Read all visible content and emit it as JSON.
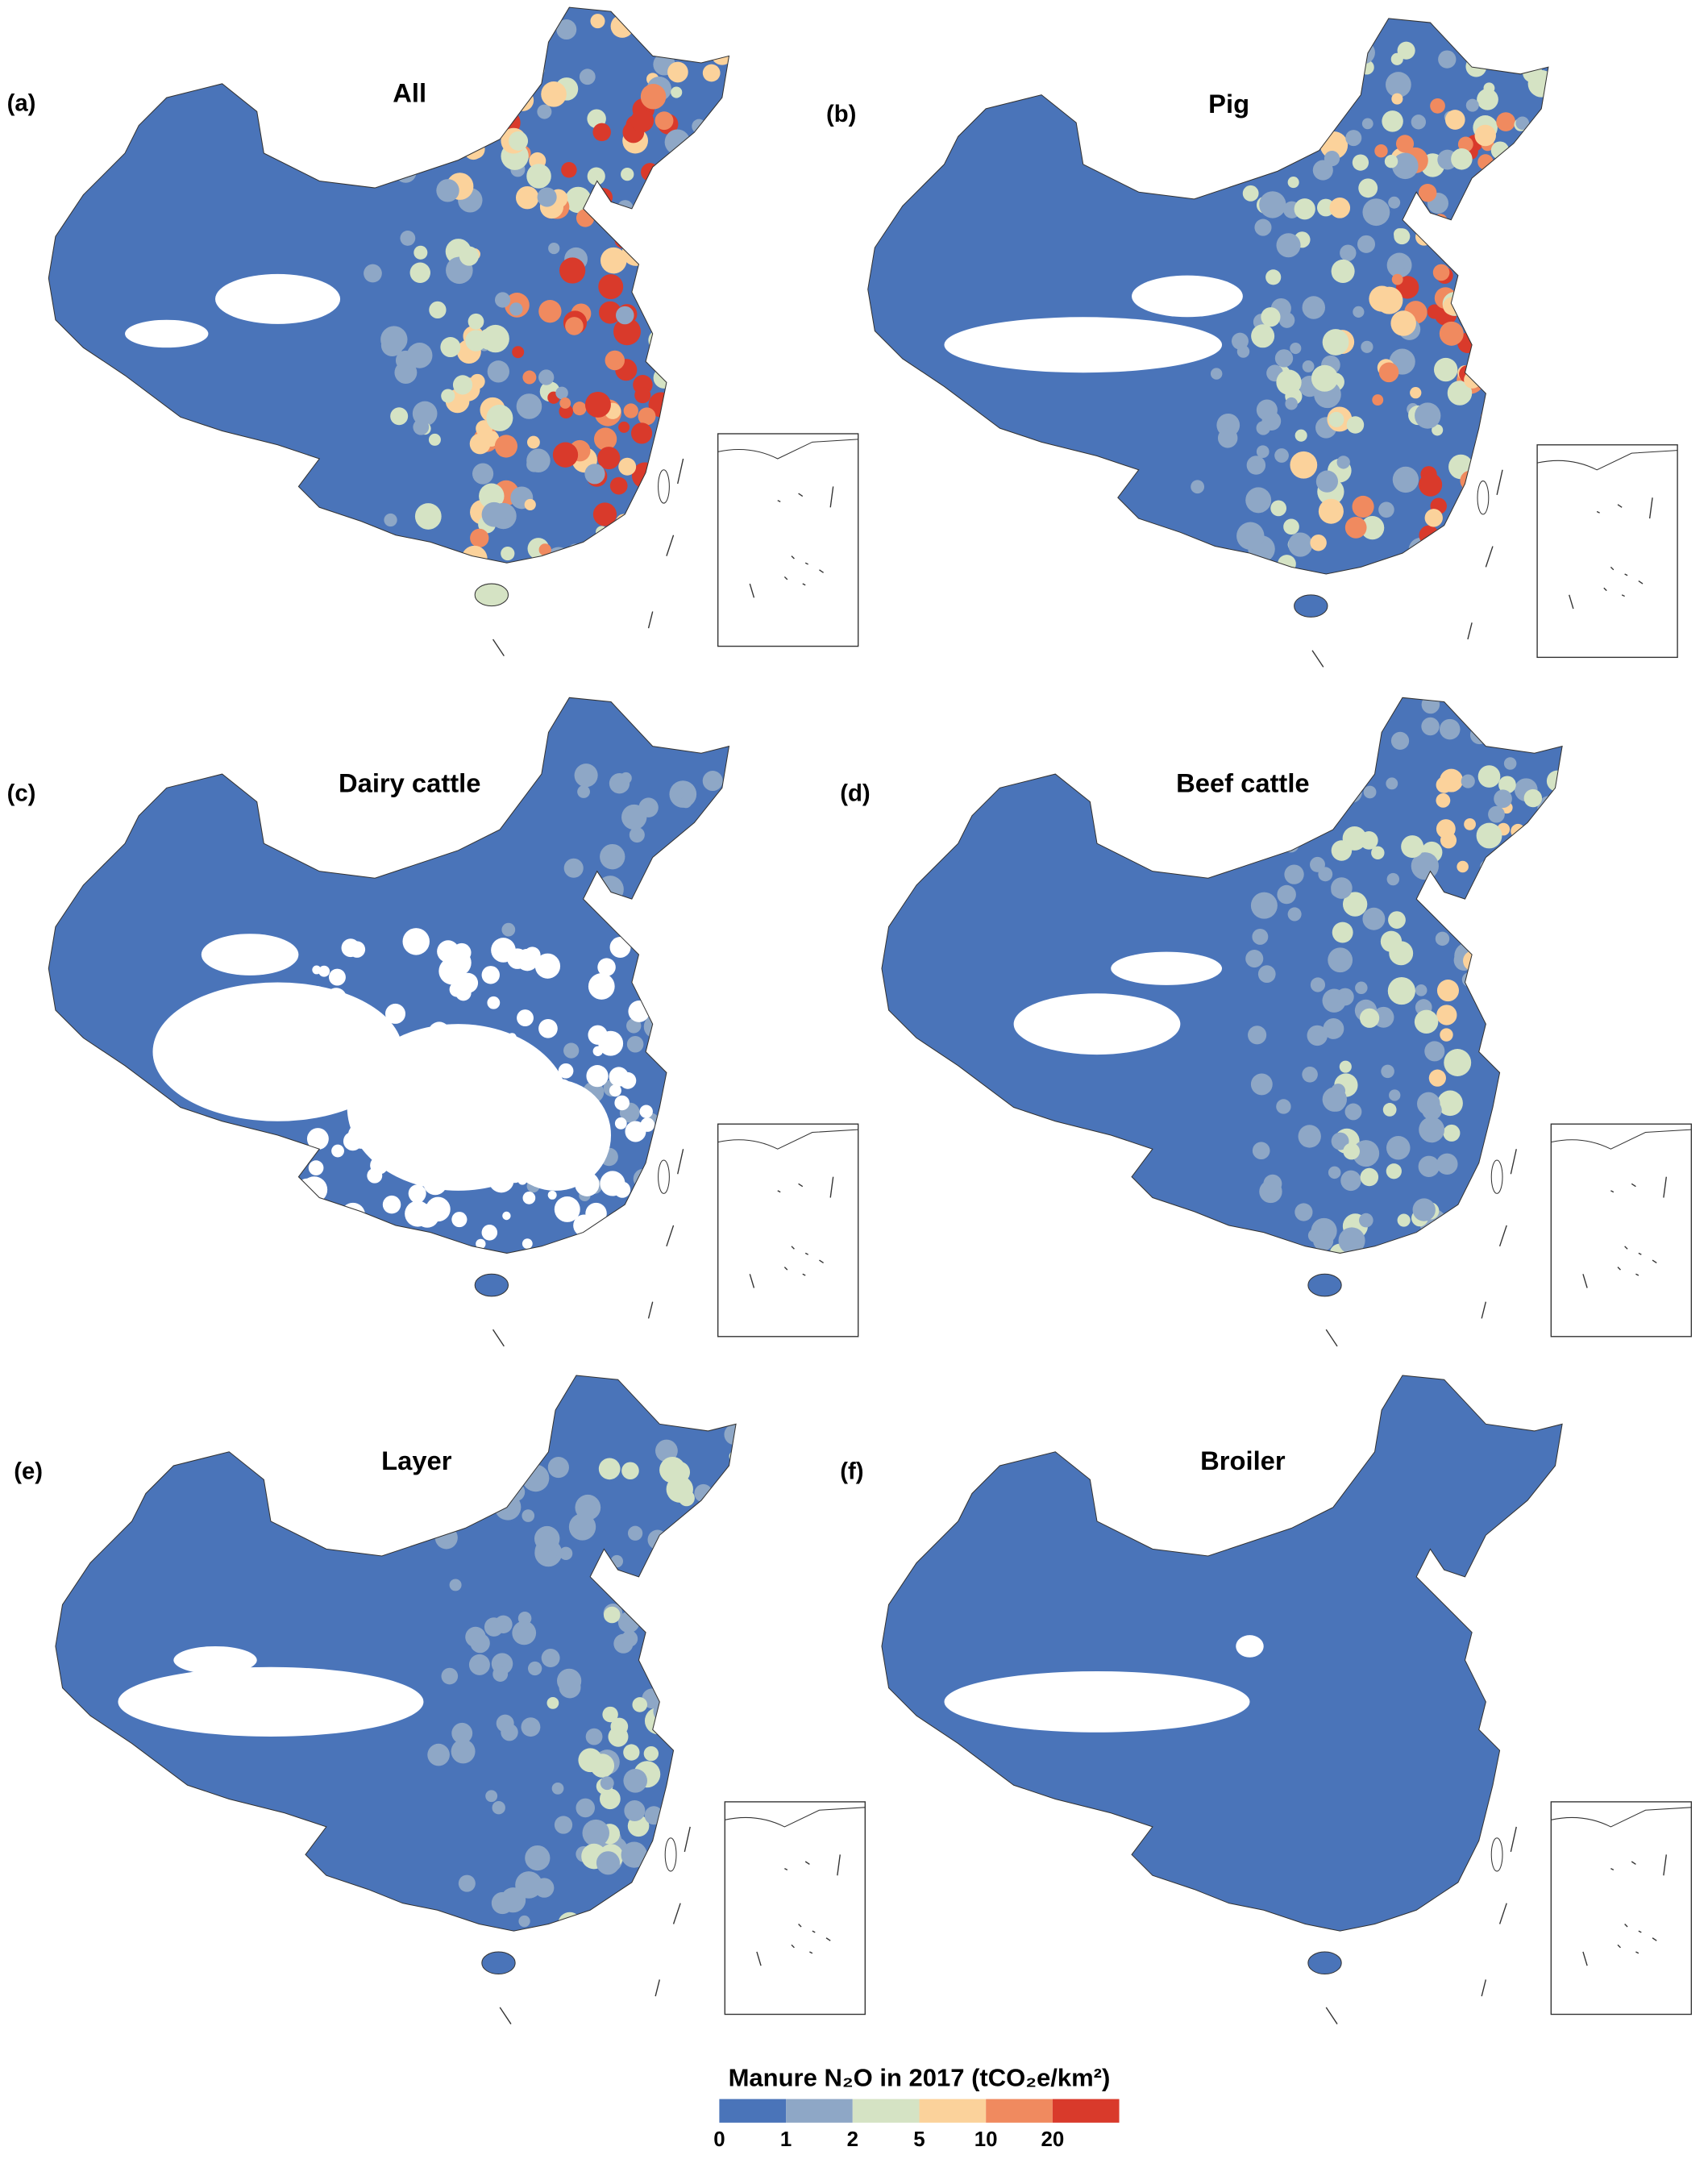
{
  "panels": [
    {
      "label": "(a)",
      "title": "All"
    },
    {
      "label": "(b)",
      "title": "Pig"
    },
    {
      "label": "(c)",
      "title": "Dairy cattle"
    },
    {
      "label": "(d)",
      "title": "Beef cattle"
    },
    {
      "label": "(e)",
      "title": "Layer"
    },
    {
      "label": "(f)",
      "title": "Broiler"
    }
  ],
  "legend": {
    "title": "Manure N₂O in 2017 (tCO₂e/km²)",
    "colors": [
      "#4a74b9",
      "#8ea7c6",
      "#d5e3c4",
      "#fbd29b",
      "#f08a5f",
      "#d93a2b"
    ],
    "ticks": [
      0,
      1,
      2,
      5,
      10,
      20
    ]
  }
}
